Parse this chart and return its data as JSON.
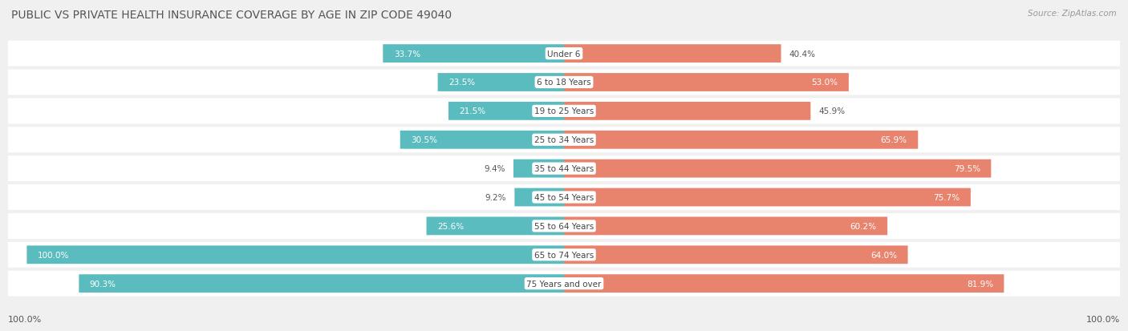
{
  "title": "PUBLIC VS PRIVATE HEALTH INSURANCE COVERAGE BY AGE IN ZIP CODE 49040",
  "source": "Source: ZipAtlas.com",
  "categories": [
    "Under 6",
    "6 to 18 Years",
    "19 to 25 Years",
    "25 to 34 Years",
    "35 to 44 Years",
    "45 to 54 Years",
    "55 to 64 Years",
    "65 to 74 Years",
    "75 Years and over"
  ],
  "public_values": [
    33.7,
    23.5,
    21.5,
    30.5,
    9.4,
    9.2,
    25.6,
    100.0,
    90.3
  ],
  "private_values": [
    40.4,
    53.0,
    45.9,
    65.9,
    79.5,
    75.7,
    60.2,
    64.0,
    81.9
  ],
  "public_color": "#5bbcbf",
  "private_color": "#e8846e",
  "bg_color": "#f0f0f0",
  "title_color": "#555555",
  "label_color_dark": "#555555",
  "label_color_white": "#ffffff",
  "bar_height": 0.62,
  "row_bg_color": "#ffffff",
  "figsize": [
    14.06,
    4.14
  ],
  "dpi": 100,
  "pub_inside_threshold": 20,
  "priv_inside_threshold": 50
}
